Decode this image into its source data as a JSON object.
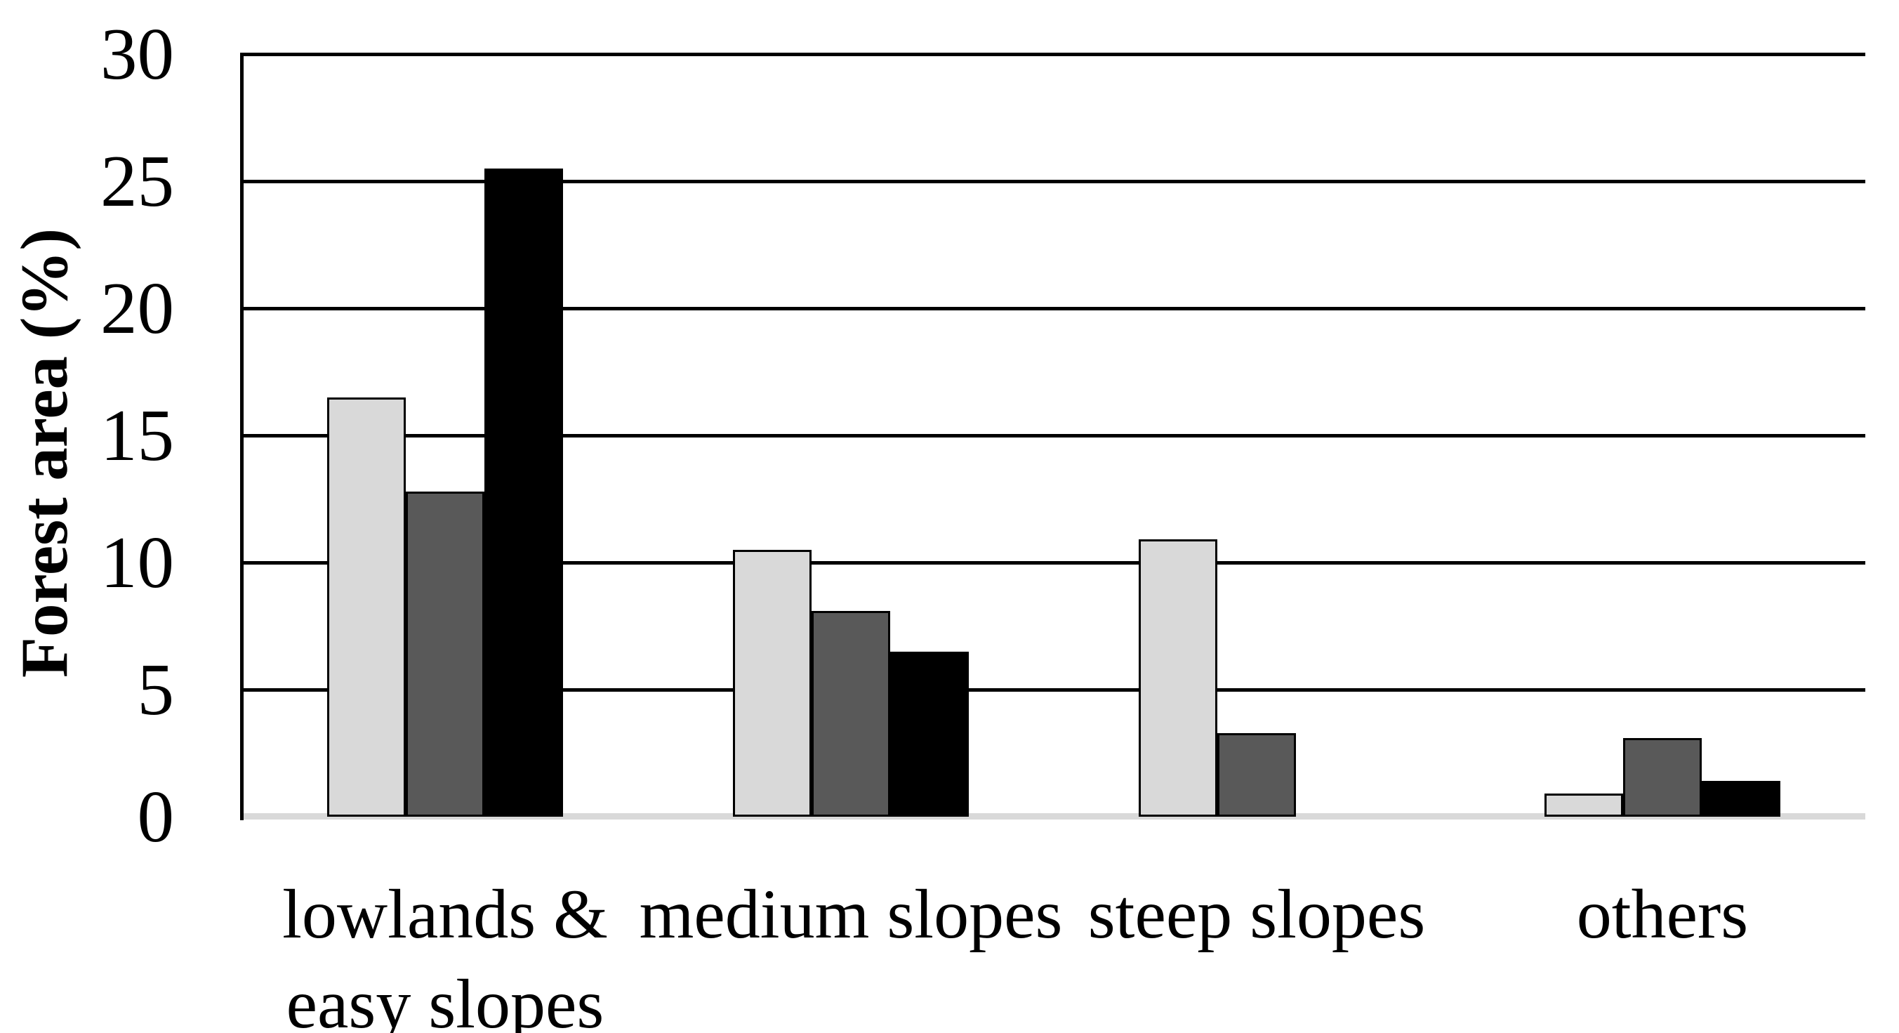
{
  "chart_data": {
    "type": "bar",
    "title": "",
    "xlabel": "",
    "ylabel": "Forest area (%)",
    "ylim": [
      0,
      30
    ],
    "yticks": [
      0,
      5,
      10,
      15,
      20,
      25,
      30
    ],
    "grid": "horizontal",
    "legend": "none",
    "categories": [
      "lowlands & easy slopes",
      "medium slopes",
      "steep slopes",
      "others"
    ],
    "category_display_lines": [
      [
        "lowlands &",
        "easy slopes"
      ],
      [
        "medium slopes"
      ],
      [
        "steep slopes"
      ],
      [
        "others"
      ]
    ],
    "series": [
      {
        "name": "light-gray",
        "color": "#d9d9d9",
        "values": [
          16.5,
          10.5,
          10.9,
          0.9
        ]
      },
      {
        "name": "dark-gray",
        "color": "#595959",
        "values": [
          12.8,
          8.1,
          3.3,
          3.1
        ]
      },
      {
        "name": "black",
        "color": "#000000",
        "values": [
          25.5,
          6.5,
          0,
          1.4
        ]
      }
    ],
    "colors": {
      "gridline": "#000000",
      "baseline": "#d9d9d9",
      "text": "#000000",
      "background": "#ffffff"
    }
  }
}
